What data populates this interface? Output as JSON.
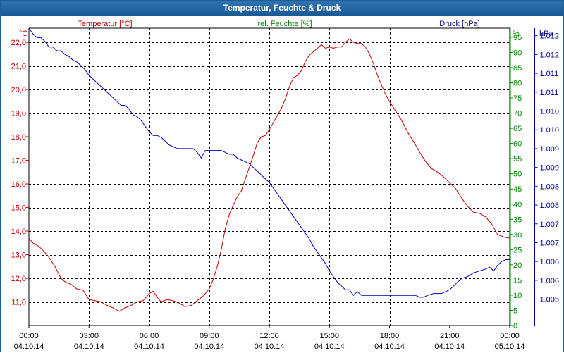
{
  "window": {
    "title": "Temperatur, Feuchte & Druck"
  },
  "chart_data": {
    "type": "line",
    "title": "Temperatur, Feuchte & Druck",
    "x_axis": {
      "ticks": [
        {
          "hours": 0,
          "time": "00:00",
          "date": "04.10.14"
        },
        {
          "hours": 3,
          "time": "03:00",
          "date": "04.10.14"
        },
        {
          "hours": 6,
          "time": "06:00",
          "date": "04.10.14"
        },
        {
          "hours": 9,
          "time": "09:00",
          "date": "04.10.14"
        },
        {
          "hours": 12,
          "time": "12:00",
          "date": "04.10.14"
        },
        {
          "hours": 15,
          "time": "15:00",
          "date": "04.10.14"
        },
        {
          "hours": 18,
          "time": "18:00",
          "date": "04.10.14"
        },
        {
          "hours": 21,
          "time": "21:00",
          "date": "04.10.14"
        },
        {
          "hours": 24,
          "time": "00:00",
          "date": "05.10.14"
        }
      ],
      "range": [
        0,
        24
      ]
    },
    "axes": {
      "temperature": {
        "name": "Temperatur [°C]",
        "unit": "°C",
        "color": "#c00000",
        "range": [
          10.0,
          22.6
        ],
        "ticks": [
          "11,0",
          "12,0",
          "13,0",
          "14,0",
          "15,0",
          "16,0",
          "17,0",
          "18,0",
          "19,0",
          "20,0",
          "21,0",
          "22,0"
        ],
        "tick_values": [
          11,
          12,
          13,
          14,
          15,
          16,
          17,
          18,
          19,
          20,
          21,
          22
        ]
      },
      "humidity": {
        "name": "rel. Feuchte [%]",
        "unit": "%",
        "color": "#008000",
        "range": [
          0,
          98
        ],
        "ticks": [
          "0",
          "5",
          "10",
          "15",
          "20",
          "25",
          "30",
          "35",
          "40",
          "45",
          "50",
          "55",
          "60",
          "65",
          "70",
          "75",
          "80",
          "85",
          "90",
          "95"
        ],
        "tick_values": [
          0,
          5,
          10,
          15,
          20,
          25,
          30,
          35,
          40,
          45,
          50,
          55,
          60,
          65,
          70,
          75,
          80,
          85,
          90,
          95
        ]
      },
      "pressure": {
        "name": "Druck [hPa]",
        "unit": "hPa",
        "color": "#00008b",
        "range": [
          1004.3,
          1012.2
        ],
        "ticks": [
          "1.005",
          "1.006",
          "1.006",
          "1.007",
          "1.007",
          "1.008",
          "1.008",
          "1.009",
          "1.009",
          "1.010",
          "1.010",
          "1.011",
          "1.011",
          "1.012",
          "1.012"
        ],
        "tick_values": [
          1005.0,
          1005.5,
          1006.0,
          1006.5,
          1007.0,
          1007.5,
          1008.0,
          1008.5,
          1009.0,
          1009.5,
          1010.0,
          1010.5,
          1011.0,
          1011.5,
          1012.0
        ]
      }
    },
    "series": [
      {
        "name": "Temperatur",
        "axis": "temperature",
        "color": "#c00000",
        "points": [
          [
            0.0,
            13.7
          ],
          [
            0.2,
            13.5
          ],
          [
            0.5,
            13.35
          ],
          [
            0.8,
            13.1
          ],
          [
            1.0,
            12.9
          ],
          [
            1.3,
            12.5
          ],
          [
            1.6,
            12.0
          ],
          [
            1.8,
            11.85
          ],
          [
            2.1,
            11.75
          ],
          [
            2.4,
            11.55
          ],
          [
            2.7,
            11.5
          ],
          [
            3.0,
            11.1
          ],
          [
            3.3,
            11.05
          ],
          [
            3.6,
            11.0
          ],
          [
            3.9,
            10.85
          ],
          [
            4.2,
            10.75
          ],
          [
            4.5,
            10.6
          ],
          [
            4.8,
            10.75
          ],
          [
            5.1,
            10.85
          ],
          [
            5.4,
            11.0
          ],
          [
            5.7,
            11.05
          ],
          [
            6.0,
            11.35
          ],
          [
            6.2,
            11.45
          ],
          [
            6.4,
            11.2
          ],
          [
            6.6,
            11.0
          ],
          [
            6.9,
            11.1
          ],
          [
            7.2,
            11.05
          ],
          [
            7.5,
            10.95
          ],
          [
            7.8,
            10.8
          ],
          [
            8.1,
            10.85
          ],
          [
            8.4,
            11.05
          ],
          [
            8.7,
            11.25
          ],
          [
            9.0,
            11.55
          ],
          [
            9.2,
            11.95
          ],
          [
            9.4,
            12.5
          ],
          [
            9.6,
            13.2
          ],
          [
            9.8,
            14.1
          ],
          [
            10.0,
            14.7
          ],
          [
            10.2,
            15.1
          ],
          [
            10.4,
            15.45
          ],
          [
            10.6,
            15.7
          ],
          [
            10.8,
            16.2
          ],
          [
            11.0,
            16.7
          ],
          [
            11.2,
            17.2
          ],
          [
            11.4,
            17.75
          ],
          [
            11.6,
            18.0
          ],
          [
            11.8,
            18.05
          ],
          [
            12.0,
            18.3
          ],
          [
            12.2,
            18.6
          ],
          [
            12.4,
            18.9
          ],
          [
            12.6,
            19.2
          ],
          [
            12.8,
            19.6
          ],
          [
            13.0,
            20.1
          ],
          [
            13.2,
            20.5
          ],
          [
            13.4,
            20.6
          ],
          [
            13.6,
            20.8
          ],
          [
            13.8,
            21.2
          ],
          [
            14.0,
            21.45
          ],
          [
            14.2,
            21.6
          ],
          [
            14.4,
            21.75
          ],
          [
            14.6,
            21.9
          ],
          [
            14.8,
            21.75
          ],
          [
            15.0,
            21.8
          ],
          [
            15.2,
            21.75
          ],
          [
            15.4,
            21.8
          ],
          [
            15.6,
            21.8
          ],
          [
            15.8,
            22.0
          ],
          [
            16.0,
            22.15
          ],
          [
            16.2,
            22.0
          ],
          [
            16.4,
            21.95
          ],
          [
            16.6,
            21.95
          ],
          [
            16.8,
            21.8
          ],
          [
            17.0,
            21.5
          ],
          [
            17.2,
            21.1
          ],
          [
            17.4,
            20.6
          ],
          [
            17.6,
            20.2
          ],
          [
            17.8,
            19.8
          ],
          [
            18.0,
            19.5
          ],
          [
            18.3,
            19.1
          ],
          [
            18.6,
            18.7
          ],
          [
            18.9,
            18.2
          ],
          [
            19.2,
            17.8
          ],
          [
            19.5,
            17.35
          ],
          [
            19.8,
            16.95
          ],
          [
            20.1,
            16.65
          ],
          [
            20.4,
            16.5
          ],
          [
            20.7,
            16.3
          ],
          [
            21.0,
            16.05
          ],
          [
            21.3,
            15.8
          ],
          [
            21.6,
            15.4
          ],
          [
            21.9,
            15.05
          ],
          [
            22.2,
            14.8
          ],
          [
            22.5,
            14.75
          ],
          [
            22.8,
            14.6
          ],
          [
            23.1,
            14.3
          ],
          [
            23.4,
            13.85
          ],
          [
            23.7,
            13.75
          ],
          [
            24.0,
            13.7
          ]
        ]
      },
      {
        "name": "Druck",
        "axis": "pressure",
        "color": "#0000c0",
        "points": [
          [
            0.0,
            1012.2
          ],
          [
            0.2,
            1012.05
          ],
          [
            0.4,
            1011.95
          ],
          [
            0.6,
            1011.95
          ],
          [
            0.8,
            1011.85
          ],
          [
            1.0,
            1011.7
          ],
          [
            1.2,
            1011.7
          ],
          [
            1.4,
            1011.6
          ],
          [
            1.6,
            1011.6
          ],
          [
            1.8,
            1011.5
          ],
          [
            2.0,
            1011.45
          ],
          [
            2.2,
            1011.35
          ],
          [
            2.4,
            1011.3
          ],
          [
            2.6,
            1011.2
          ],
          [
            2.8,
            1011.1
          ],
          [
            3.0,
            1010.95
          ],
          [
            3.2,
            1010.85
          ],
          [
            3.4,
            1010.75
          ],
          [
            3.6,
            1010.65
          ],
          [
            3.8,
            1010.55
          ],
          [
            4.0,
            1010.45
          ],
          [
            4.2,
            1010.35
          ],
          [
            4.4,
            1010.25
          ],
          [
            4.6,
            1010.15
          ],
          [
            4.8,
            1010.15
          ],
          [
            5.0,
            1010.05
          ],
          [
            5.2,
            1009.9
          ],
          [
            5.4,
            1009.85
          ],
          [
            5.6,
            1009.75
          ],
          [
            5.8,
            1009.6
          ],
          [
            6.0,
            1009.45
          ],
          [
            6.2,
            1009.35
          ],
          [
            6.4,
            1009.35
          ],
          [
            6.6,
            1009.3
          ],
          [
            6.8,
            1009.2
          ],
          [
            7.0,
            1009.1
          ],
          [
            7.2,
            1009.05
          ],
          [
            7.4,
            1009.0
          ],
          [
            7.6,
            1009.0
          ],
          [
            7.8,
            1009.0
          ],
          [
            8.0,
            1009.0
          ],
          [
            8.2,
            1009.0
          ],
          [
            8.4,
            1008.9
          ],
          [
            8.6,
            1008.75
          ],
          [
            8.8,
            1008.95
          ],
          [
            9.0,
            1008.95
          ],
          [
            9.2,
            1008.95
          ],
          [
            9.4,
            1008.95
          ],
          [
            9.6,
            1008.95
          ],
          [
            9.8,
            1008.9
          ],
          [
            10.0,
            1008.85
          ],
          [
            10.2,
            1008.85
          ],
          [
            10.4,
            1008.75
          ],
          [
            10.6,
            1008.7
          ],
          [
            10.8,
            1008.65
          ],
          [
            11.0,
            1008.6
          ],
          [
            11.2,
            1008.5
          ],
          [
            11.4,
            1008.4
          ],
          [
            11.6,
            1008.3
          ],
          [
            11.8,
            1008.2
          ],
          [
            12.0,
            1008.1
          ],
          [
            12.2,
            1007.95
          ],
          [
            12.4,
            1007.8
          ],
          [
            12.6,
            1007.65
          ],
          [
            12.8,
            1007.5
          ],
          [
            13.0,
            1007.35
          ],
          [
            13.2,
            1007.2
          ],
          [
            13.4,
            1007.05
          ],
          [
            13.6,
            1006.9
          ],
          [
            13.8,
            1006.75
          ],
          [
            14.0,
            1006.6
          ],
          [
            14.2,
            1006.4
          ],
          [
            14.4,
            1006.25
          ],
          [
            14.6,
            1006.1
          ],
          [
            14.8,
            1005.95
          ],
          [
            15.0,
            1005.75
          ],
          [
            15.2,
            1005.6
          ],
          [
            15.4,
            1005.45
          ],
          [
            15.6,
            1005.35
          ],
          [
            15.8,
            1005.25
          ],
          [
            16.0,
            1005.25
          ],
          [
            16.2,
            1005.1
          ],
          [
            16.4,
            1005.2
          ],
          [
            16.6,
            1005.1
          ],
          [
            16.8,
            1005.1
          ],
          [
            17.0,
            1005.1
          ],
          [
            17.5,
            1005.1
          ],
          [
            18.0,
            1005.1
          ],
          [
            18.5,
            1005.1
          ],
          [
            19.0,
            1005.1
          ],
          [
            19.3,
            1005.1
          ],
          [
            19.5,
            1005.05
          ],
          [
            19.7,
            1005.05
          ],
          [
            19.9,
            1005.1
          ],
          [
            20.2,
            1005.15
          ],
          [
            20.6,
            1005.15
          ],
          [
            21.0,
            1005.25
          ],
          [
            21.3,
            1005.4
          ],
          [
            21.6,
            1005.55
          ],
          [
            21.9,
            1005.6
          ],
          [
            22.2,
            1005.7
          ],
          [
            22.5,
            1005.75
          ],
          [
            22.8,
            1005.8
          ],
          [
            23.0,
            1005.85
          ],
          [
            23.2,
            1005.75
          ],
          [
            23.4,
            1005.9
          ],
          [
            23.6,
            1006.0
          ],
          [
            23.8,
            1006.05
          ],
          [
            24.0,
            1006.05
          ]
        ]
      }
    ],
    "legend": "top"
  }
}
